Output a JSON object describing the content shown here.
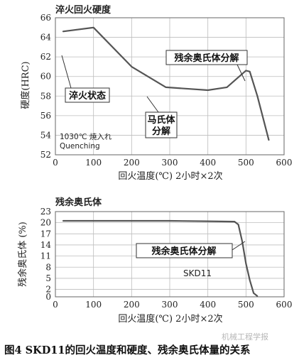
{
  "chart_data": [
    {
      "type": "line",
      "title": "淬火回火硬度",
      "xlabel": "回火温度(℃) 2小时×2次",
      "ylabel": "硬度(HRC)",
      "xlim": [
        0,
        600
      ],
      "ylim": [
        52,
        66
      ],
      "xticks": [
        "0",
        "100",
        "200",
        "300",
        "400",
        "500",
        "600"
      ],
      "yticks": [
        "52",
        "54",
        "56",
        "58",
        "60",
        "62",
        "64",
        "66"
      ],
      "grid": true,
      "series": [
        {
          "x": [
            20,
            100,
            200,
            290,
            400,
            450,
            500,
            510,
            530,
            560
          ],
          "y": [
            64.6,
            65.0,
            61.0,
            58.9,
            58.6,
            58.9,
            60.6,
            60.5,
            58.0,
            53.5
          ]
        }
      ],
      "annotations": [
        "残余奥氏体分解",
        "淬火状态",
        "马氏体",
        "分解",
        "1030℃ 焼入れ",
        "Quenching"
      ]
    },
    {
      "type": "line",
      "title": "残余奥氏体",
      "xlabel": "回火温度(℃) 2小时×2次",
      "ylabel": "残余奥氏体 (%)",
      "xlim": [
        0,
        600
      ],
      "ylim": [
        0,
        23
      ],
      "xticks": [
        "0",
        "100",
        "200",
        "300",
        "400",
        "500",
        "600"
      ],
      "yticks": [
        "0",
        "2",
        "5",
        "8",
        "11",
        "14",
        "17",
        "20",
        "23"
      ],
      "grid": true,
      "series": [
        {
          "x": [
            20,
            100,
            200,
            300,
            400,
            470,
            480,
            490,
            500,
            510,
            520,
            530
          ],
          "y": [
            20.5,
            20.5,
            20.5,
            20.5,
            20.4,
            20.3,
            19.5,
            15.0,
            9.0,
            4.5,
            1.0,
            0.2
          ]
        }
      ],
      "annotations": [
        "残余奥氏体分解",
        "SKD11"
      ]
    }
  ],
  "caption": "图4 SKD11的回火温度和硬度、残余奥氏体量的关系",
  "watermark": "机械工程学报"
}
